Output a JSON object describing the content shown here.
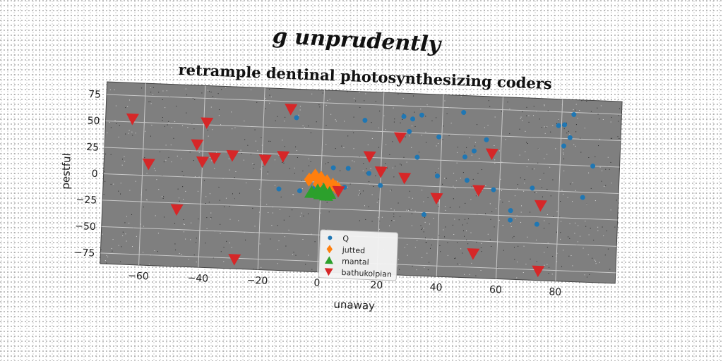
{
  "suptitle": "g unprudently",
  "chart_data": {
    "type": "scatter",
    "title": "retrample dentinal photosynthesizing coders",
    "xlabel": "unaway",
    "ylabel": "pestful",
    "xlim": [
      -73,
      100
    ],
    "ylim": [
      -85,
      87
    ],
    "xticks": [
      -60,
      -40,
      -20,
      0,
      20,
      40,
      60,
      80
    ],
    "yticks": [
      75,
      50,
      25,
      0,
      -25,
      -50,
      -75
    ],
    "grid": true,
    "legend_position": "lower center",
    "series": [
      {
        "name": "Q",
        "marker": "circle",
        "color": "#1f77b4",
        "points": [
          [
            -9,
            60
          ],
          [
            14,
            60
          ],
          [
            27,
            65
          ],
          [
            30,
            63
          ],
          [
            33,
            67
          ],
          [
            47,
            71
          ],
          [
            29,
            51
          ],
          [
            39,
            47
          ],
          [
            55,
            46
          ],
          [
            51,
            35
          ],
          [
            48,
            29
          ],
          [
            32,
            27
          ],
          [
            39,
            10
          ],
          [
            49,
            7
          ],
          [
            58,
            -1
          ],
          [
            71,
            2
          ],
          [
            73,
            -32
          ],
          [
            64,
            -20
          ],
          [
            64,
            -29
          ],
          [
            35,
            -27
          ],
          [
            79,
            62
          ],
          [
            81,
            63
          ],
          [
            84,
            73
          ],
          [
            81,
            43
          ],
          [
            83,
            51
          ],
          [
            91,
            25
          ],
          [
            88,
            -5
          ],
          [
            4,
            14
          ],
          [
            9,
            14
          ],
          [
            16,
            10
          ],
          [
            20,
            -1
          ],
          [
            8,
            -4
          ],
          [
            -14,
            -8
          ],
          [
            -7,
            -9
          ],
          [
            -2,
            -6
          ],
          [
            1,
            -6
          ]
        ]
      },
      {
        "name": "jutted",
        "marker": "diamond",
        "color": "#ff7f0e",
        "points": [
          [
            -4,
            2
          ],
          [
            -2,
            6
          ],
          [
            0,
            4
          ],
          [
            2,
            1
          ],
          [
            4,
            -2
          ],
          [
            6,
            -6
          ],
          [
            -1,
            -2
          ],
          [
            2,
            -4
          ],
          [
            5,
            -4
          ]
        ]
      },
      {
        "name": "mantal",
        "marker": "triangle-up",
        "color": "#2ca02c",
        "points": [
          [
            -3,
            -10
          ],
          [
            -1,
            -8
          ],
          [
            1,
            -7
          ],
          [
            3,
            -10
          ],
          [
            0,
            -11
          ],
          [
            2,
            -12
          ]
        ]
      },
      {
        "name": "bathukolpian",
        "marker": "triangle-down",
        "color": "#d62728",
        "points": [
          [
            -64,
            53
          ],
          [
            -58,
            11
          ],
          [
            -39,
            52
          ],
          [
            -42,
            31
          ],
          [
            -40,
            15
          ],
          [
            -36,
            19
          ],
          [
            -30,
            22
          ],
          [
            -11,
            68
          ],
          [
            -19,
            19
          ],
          [
            -13,
            23
          ],
          [
            -48,
            -31
          ],
          [
            -28,
            -76
          ],
          [
            16,
            26
          ],
          [
            20,
            12
          ],
          [
            26,
            45
          ],
          [
            28,
            7
          ],
          [
            39,
            -11
          ],
          [
            52,
            -62
          ],
          [
            53,
            -2
          ],
          [
            57,
            33
          ],
          [
            74,
            -14
          ],
          [
            74,
            -76
          ],
          [
            6,
            -8
          ]
        ]
      }
    ]
  }
}
